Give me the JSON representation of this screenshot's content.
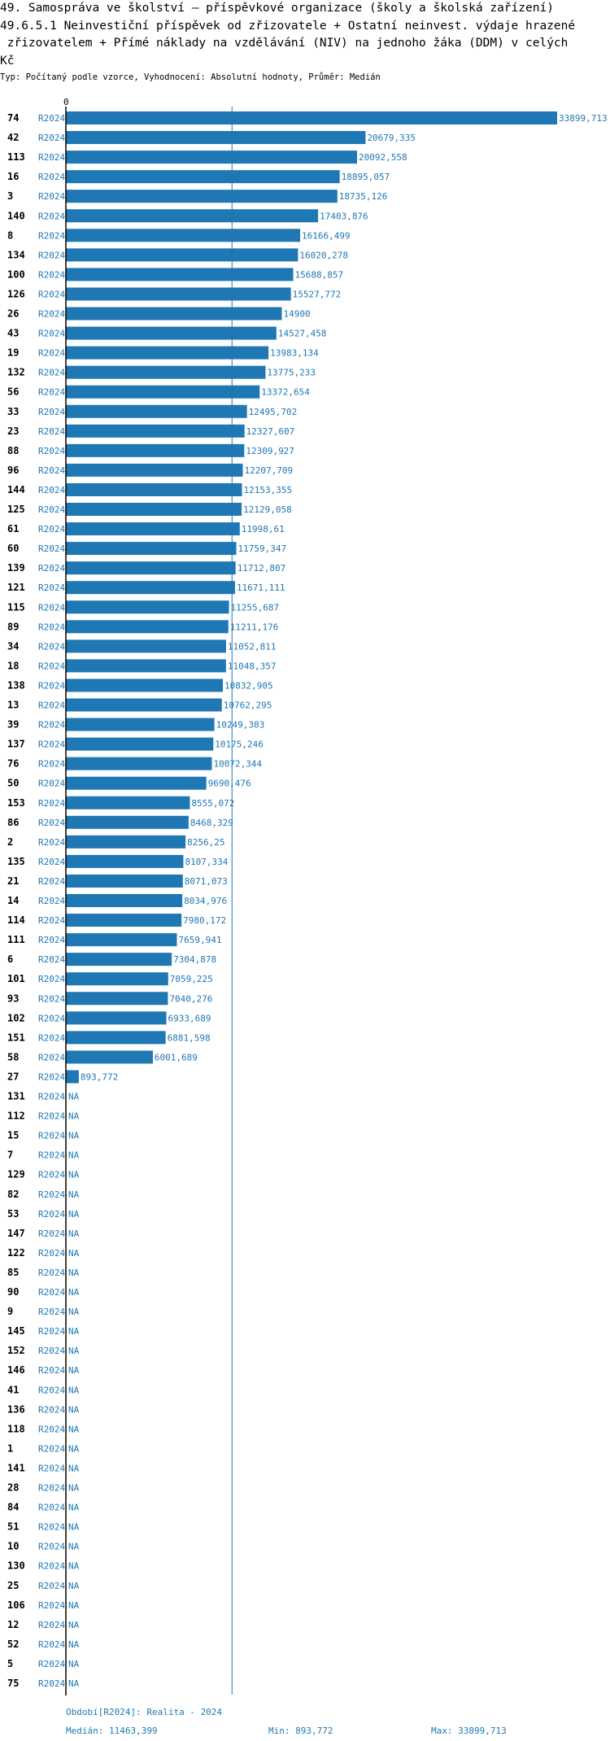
{
  "title": "49. Samospráva ve školství – příspěvkové organizace (školy a školská zařízení)\n49.6.5.1 Neinvestiční příspěvek od zřizovatele + Ostatní neinvest. výdaje hrazené\n zřizovatelem + Přímé náklady na vzdělávání (NIV) na jednoho žáka (DDM) v celých\nKč",
  "subtitle": "Typ: Počítaný podle vzorce, Vyhodnocení: Absolutní hodnoty, Průměr: Medián",
  "colors": {
    "bar": "#1f77b4",
    "text": "#000000",
    "accent": "#1f77b4"
  },
  "chart_data": {
    "type": "bar",
    "orientation": "horizontal",
    "x_tick_labels": [
      "0"
    ],
    "xlim": [
      0,
      33899.713
    ],
    "median": 11463.399,
    "rows": [
      {
        "code": "74",
        "period": "R2024",
        "value": 33899.713,
        "label": "33899,713"
      },
      {
        "code": "42",
        "period": "R2024",
        "value": 20679.335,
        "label": "20679,335"
      },
      {
        "code": "113",
        "period": "R2024",
        "value": 20092.558,
        "label": "20092,558"
      },
      {
        "code": "16",
        "period": "R2024",
        "value": 18895.057,
        "label": "18895,057"
      },
      {
        "code": "3",
        "period": "R2024",
        "value": 18735.126,
        "label": "18735,126"
      },
      {
        "code": "140",
        "period": "R2024",
        "value": 17403.876,
        "label": "17403,876"
      },
      {
        "code": "8",
        "period": "R2024",
        "value": 16166.499,
        "label": "16166,499"
      },
      {
        "code": "134",
        "period": "R2024",
        "value": 16020.278,
        "label": "16020,278"
      },
      {
        "code": "100",
        "period": "R2024",
        "value": 15688.857,
        "label": "15688,857"
      },
      {
        "code": "126",
        "period": "R2024",
        "value": 15527.772,
        "label": "15527,772"
      },
      {
        "code": "26",
        "period": "R2024",
        "value": 14900,
        "label": "14900"
      },
      {
        "code": "43",
        "period": "R2024",
        "value": 14527.458,
        "label": "14527,458"
      },
      {
        "code": "19",
        "period": "R2024",
        "value": 13983.134,
        "label": "13983,134"
      },
      {
        "code": "132",
        "period": "R2024",
        "value": 13775.233,
        "label": "13775,233"
      },
      {
        "code": "56",
        "period": "R2024",
        "value": 13372.654,
        "label": "13372,654"
      },
      {
        "code": "33",
        "period": "R2024",
        "value": 12495.702,
        "label": "12495,702"
      },
      {
        "code": "23",
        "period": "R2024",
        "value": 12327.607,
        "label": "12327,607"
      },
      {
        "code": "88",
        "period": "R2024",
        "value": 12309.927,
        "label": "12309,927"
      },
      {
        "code": "96",
        "period": "R2024",
        "value": 12207.709,
        "label": "12207,709"
      },
      {
        "code": "144",
        "period": "R2024",
        "value": 12153.355,
        "label": "12153,355"
      },
      {
        "code": "125",
        "period": "R2024",
        "value": 12129.058,
        "label": "12129,058"
      },
      {
        "code": "61",
        "period": "R2024",
        "value": 11998.61,
        "label": "11998,61"
      },
      {
        "code": "60",
        "period": "R2024",
        "value": 11759.347,
        "label": "11759,347"
      },
      {
        "code": "139",
        "period": "R2024",
        "value": 11712.807,
        "label": "11712,807"
      },
      {
        "code": "121",
        "period": "R2024",
        "value": 11671.111,
        "label": "11671,111"
      },
      {
        "code": "115",
        "period": "R2024",
        "value": 11255.687,
        "label": "11255,687"
      },
      {
        "code": "89",
        "period": "R2024",
        "value": 11211.176,
        "label": "11211,176"
      },
      {
        "code": "34",
        "period": "R2024",
        "value": 11052.811,
        "label": "11052,811"
      },
      {
        "code": "18",
        "period": "R2024",
        "value": 11048.357,
        "label": "11048,357"
      },
      {
        "code": "138",
        "period": "R2024",
        "value": 10832.905,
        "label": "10832,905"
      },
      {
        "code": "13",
        "period": "R2024",
        "value": 10762.295,
        "label": "10762,295"
      },
      {
        "code": "39",
        "period": "R2024",
        "value": 10249.303,
        "label": "10249,303"
      },
      {
        "code": "137",
        "period": "R2024",
        "value": 10175.246,
        "label": "10175,246"
      },
      {
        "code": "76",
        "period": "R2024",
        "value": 10072.344,
        "label": "10072,344"
      },
      {
        "code": "50",
        "period": "R2024",
        "value": 9690.476,
        "label": "9690,476"
      },
      {
        "code": "153",
        "period": "R2024",
        "value": 8555.072,
        "label": "8555,072"
      },
      {
        "code": "86",
        "period": "R2024",
        "value": 8468.329,
        "label": "8468,329"
      },
      {
        "code": "2",
        "period": "R2024",
        "value": 8256.25,
        "label": "8256,25"
      },
      {
        "code": "135",
        "period": "R2024",
        "value": 8107.334,
        "label": "8107,334"
      },
      {
        "code": "21",
        "period": "R2024",
        "value": 8071.073,
        "label": "8071,073"
      },
      {
        "code": "14",
        "period": "R2024",
        "value": 8034.976,
        "label": "8034,976"
      },
      {
        "code": "114",
        "period": "R2024",
        "value": 7980.172,
        "label": "7980,172"
      },
      {
        "code": "111",
        "period": "R2024",
        "value": 7659.941,
        "label": "7659,941"
      },
      {
        "code": "6",
        "period": "R2024",
        "value": 7304.878,
        "label": "7304,878"
      },
      {
        "code": "101",
        "period": "R2024",
        "value": 7059.225,
        "label": "7059,225"
      },
      {
        "code": "93",
        "period": "R2024",
        "value": 7040.276,
        "label": "7040,276"
      },
      {
        "code": "102",
        "period": "R2024",
        "value": 6933.689,
        "label": "6933,689"
      },
      {
        "code": "151",
        "period": "R2024",
        "value": 6881.598,
        "label": "6881,598"
      },
      {
        "code": "58",
        "period": "R2024",
        "value": 6001.689,
        "label": "6001,689"
      },
      {
        "code": "27",
        "period": "R2024",
        "value": 893.772,
        "label": "893,772"
      },
      {
        "code": "131",
        "period": "R2024",
        "value": null,
        "label": "NA"
      },
      {
        "code": "112",
        "period": "R2024",
        "value": null,
        "label": "NA"
      },
      {
        "code": "15",
        "period": "R2024",
        "value": null,
        "label": "NA"
      },
      {
        "code": "7",
        "period": "R2024",
        "value": null,
        "label": "NA"
      },
      {
        "code": "129",
        "period": "R2024",
        "value": null,
        "label": "NA"
      },
      {
        "code": "82",
        "period": "R2024",
        "value": null,
        "label": "NA"
      },
      {
        "code": "53",
        "period": "R2024",
        "value": null,
        "label": "NA"
      },
      {
        "code": "147",
        "period": "R2024",
        "value": null,
        "label": "NA"
      },
      {
        "code": "122",
        "period": "R2024",
        "value": null,
        "label": "NA"
      },
      {
        "code": "85",
        "period": "R2024",
        "value": null,
        "label": "NA"
      },
      {
        "code": "90",
        "period": "R2024",
        "value": null,
        "label": "NA"
      },
      {
        "code": "9",
        "period": "R2024",
        "value": null,
        "label": "NA"
      },
      {
        "code": "145",
        "period": "R2024",
        "value": null,
        "label": "NA"
      },
      {
        "code": "152",
        "period": "R2024",
        "value": null,
        "label": "NA"
      },
      {
        "code": "146",
        "period": "R2024",
        "value": null,
        "label": "NA"
      },
      {
        "code": "41",
        "period": "R2024",
        "value": null,
        "label": "NA"
      },
      {
        "code": "136",
        "period": "R2024",
        "value": null,
        "label": "NA"
      },
      {
        "code": "118",
        "period": "R2024",
        "value": null,
        "label": "NA"
      },
      {
        "code": "1",
        "period": "R2024",
        "value": null,
        "label": "NA"
      },
      {
        "code": "141",
        "period": "R2024",
        "value": null,
        "label": "NA"
      },
      {
        "code": "28",
        "period": "R2024",
        "value": null,
        "label": "NA"
      },
      {
        "code": "84",
        "period": "R2024",
        "value": null,
        "label": "NA"
      },
      {
        "code": "51",
        "period": "R2024",
        "value": null,
        "label": "NA"
      },
      {
        "code": "10",
        "period": "R2024",
        "value": null,
        "label": "NA"
      },
      {
        "code": "130",
        "period": "R2024",
        "value": null,
        "label": "NA"
      },
      {
        "code": "25",
        "period": "R2024",
        "value": null,
        "label": "NA"
      },
      {
        "code": "106",
        "period": "R2024",
        "value": null,
        "label": "NA"
      },
      {
        "code": "12",
        "period": "R2024",
        "value": null,
        "label": "NA"
      },
      {
        "code": "52",
        "period": "R2024",
        "value": null,
        "label": "NA"
      },
      {
        "code": "5",
        "period": "R2024",
        "value": null,
        "label": "NA"
      },
      {
        "code": "75",
        "period": "R2024",
        "value": null,
        "label": "NA"
      }
    ]
  },
  "footer": {
    "period": "Období[R2024]: Realita - 2024",
    "median": "Medián: 11463,399",
    "min": "Min: 893,772",
    "max": "Max: 33899,713"
  }
}
